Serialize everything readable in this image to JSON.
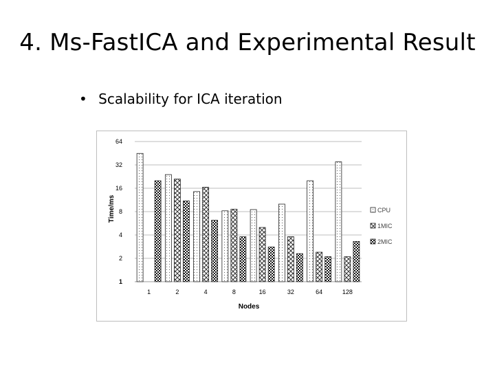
{
  "slide": {
    "title": "4.  Ms-FastICA and Experimental Result",
    "bullet_symbol": "•",
    "bullet_text": "Scalability for ICA iteration"
  },
  "chart_data": {
    "type": "bar",
    "title": "",
    "xlabel": "Nodes",
    "ylabel": "Time/ms",
    "y_scale": "log2",
    "ylim": [
      1,
      64
    ],
    "yticks": [
      "64",
      "32",
      "16",
      "8",
      "4",
      "2",
      "1"
    ],
    "grid": true,
    "legend_position": "right",
    "categories": [
      "1",
      "2",
      "4",
      "8",
      "16",
      "32",
      "64",
      "128"
    ],
    "series": [
      {
        "name": "CPU",
        "pattern": "dots",
        "values": [
          45,
          24,
          14.5,
          8.2,
          8.5,
          10,
          20,
          35
        ]
      },
      {
        "name": "1MIC",
        "pattern": "cross",
        "values": [
          null,
          21,
          16.5,
          8.6,
          5,
          3.8,
          2.4,
          2.1
        ]
      },
      {
        "name": "2MIC",
        "pattern": "check",
        "values": [
          20,
          11,
          6.2,
          3.8,
          2.8,
          2.3,
          2.1,
          3.3
        ]
      }
    ]
  }
}
